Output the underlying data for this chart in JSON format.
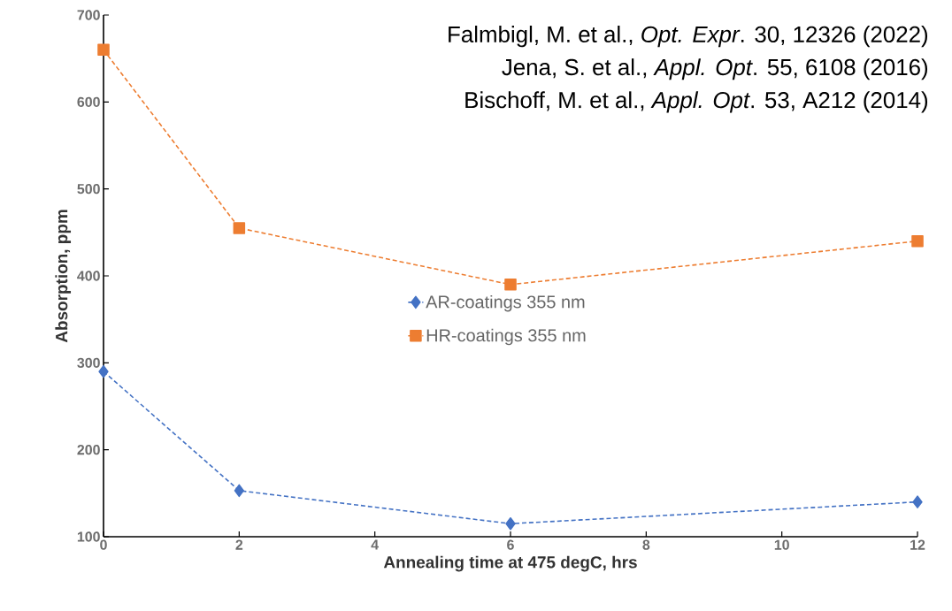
{
  "chart_data": {
    "type": "line",
    "xlabel": "Annealing time at 475 degC, hrs",
    "ylabel": "Absorption, ppm",
    "x": [
      0,
      2,
      6,
      12
    ],
    "series": [
      {
        "name": "AR-coatings 355 nm",
        "color": "#4472c4",
        "values": [
          290,
          153,
          115,
          140
        ],
        "marker": "diamond"
      },
      {
        "name": "HR-coatings 355 nm",
        "color": "#ed7d31",
        "values": [
          660,
          455,
          390,
          440
        ],
        "marker": "square"
      }
    ],
    "xlim": [
      0,
      12
    ],
    "xticks": [
      0,
      2,
      4,
      6,
      8,
      10,
      12
    ],
    "ylim": [
      100,
      700
    ],
    "yticks": [
      100,
      200,
      300,
      400,
      500,
      600,
      700
    ],
    "line_style": "dashed",
    "grid": false,
    "legend": "center",
    "annotations": [
      "Falmbigl, M. et al., *Opt. Expr*. 30, 12326 (2022)",
      "Jena, S. et al., *Appl. Opt*. 55, 6108 (2016)",
      "Bischoff, M. et al., *Appl. Opt*. 53, A212 (2014)"
    ]
  }
}
